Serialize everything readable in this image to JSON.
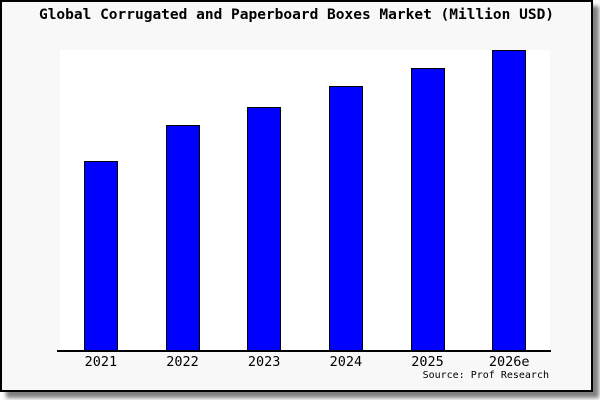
{
  "chart": {
    "title": "Global Corrugated and Paperboard Boxes Market (Million USD)",
    "source": "Source: Prof Research"
  },
  "chart_data": {
    "type": "bar",
    "title": "Global Corrugated and Paperboard Boxes Market (Million USD)",
    "unit": "Million USD",
    "categories": [
      "2021",
      "2022",
      "2023",
      "2024",
      "2025",
      "2026e"
    ],
    "values_relative_pct": [
      63,
      75,
      81,
      88,
      94,
      100
    ],
    "value_note": "no numeric y-axis shown in image; values estimated as bar height percent of tallest bar (2026e = 100)",
    "xlabel": "",
    "ylabel": "",
    "source": "Source: Prof Research",
    "legend": "none",
    "grid": false,
    "bar_color": "#0000fe",
    "bar_border_color": "#000000",
    "plot_bg": "#ffffff",
    "frame_bg": "#f8f8f8",
    "frame_border_color": "#000000"
  }
}
